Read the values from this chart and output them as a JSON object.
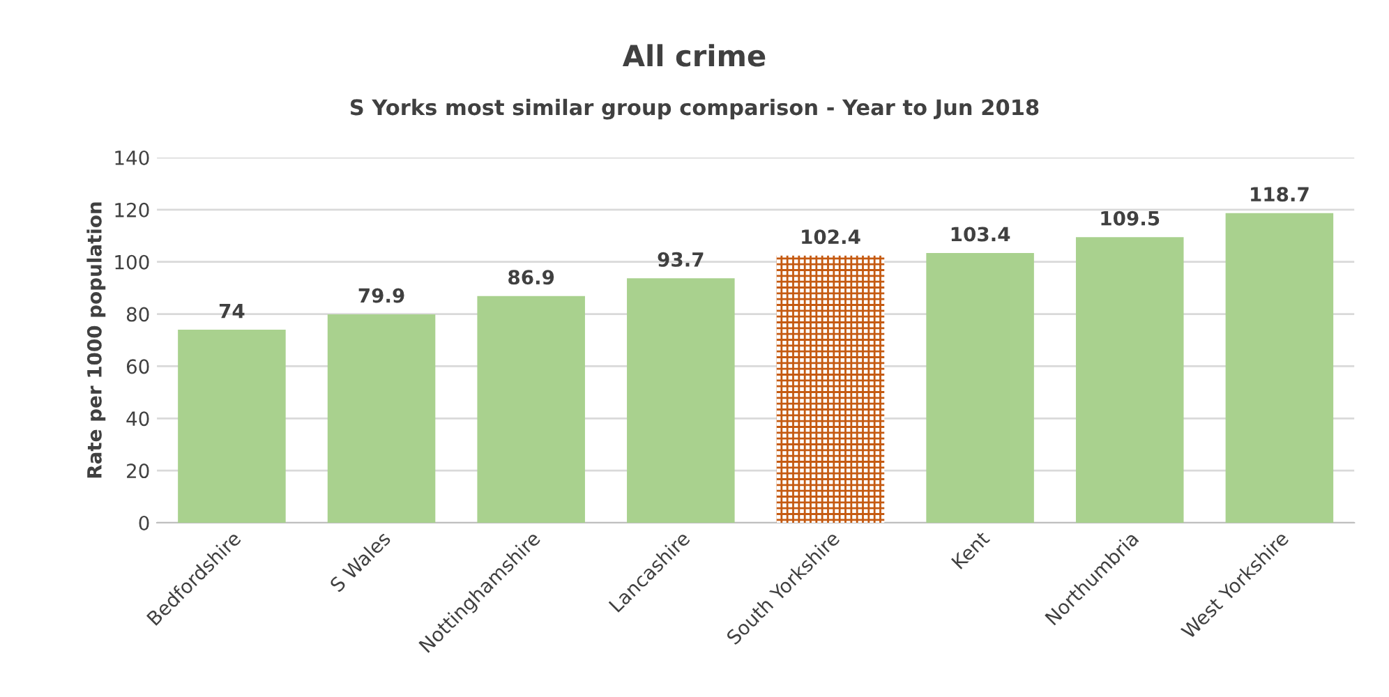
{
  "chart_data": {
    "type": "bar",
    "title": "All crime",
    "subtitle": "S Yorks most similar group comparison - Year to Jun 2018",
    "ylabel": "Rate per 1000 population",
    "categories": [
      "Bedfordshire",
      "S Wales",
      "Nottinghamshire",
      "Lancashire",
      "South Yorkshire",
      "Kent",
      "Northumbria",
      "West Yorkshire"
    ],
    "values": [
      74,
      79.9,
      86.9,
      93.7,
      102.4,
      103.4,
      109.5,
      118.7
    ],
    "colors": [
      "#a9d18e",
      "#a9d18e",
      "#a9d18e",
      "#a9d18e",
      "#c55a11",
      "#a9d18e",
      "#a9d18e",
      "#a9d18e"
    ],
    "ylim": [
      0,
      140
    ],
    "yticks": [
      0,
      20,
      40,
      60,
      80,
      100,
      120,
      140
    ],
    "grid": "y",
    "data_labels": true
  }
}
